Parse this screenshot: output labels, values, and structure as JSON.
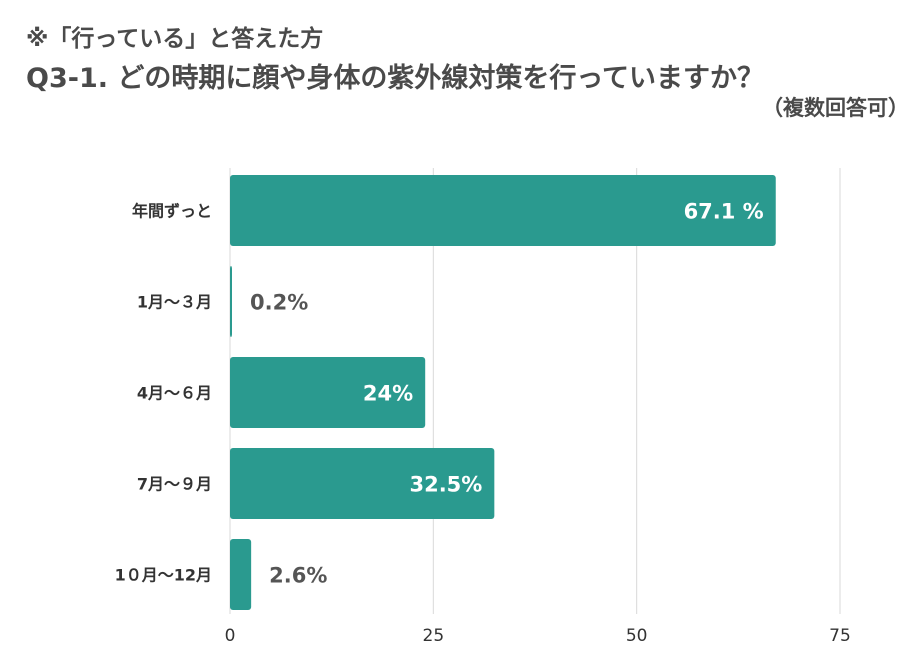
{
  "header": {
    "note": "※「行っている」と答えた方",
    "question": "Q3-1. どの時期に顔や身体の紫外線対策を行っていますか？",
    "subnote": "（複数回答可）"
  },
  "chart_data": {
    "type": "bar",
    "orientation": "horizontal",
    "categories": [
      "年間ずっと",
      "1月〜３月",
      "4月〜６月",
      "7月〜９月",
      "1０月〜12月"
    ],
    "values": [
      67.1,
      0.2,
      24,
      32.5,
      2.6
    ],
    "data_labels": [
      "67.1 %",
      "0.2%",
      "24%",
      "32.5%",
      "2.6%"
    ],
    "xlim": [
      0,
      75
    ],
    "xticks": [
      0,
      25,
      50,
      75
    ],
    "xtick_labels": [
      "0",
      "25",
      "50",
      "75"
    ],
    "grid": true,
    "bar_color": "#2a9a8f",
    "grid_color": "#d9d9d9"
  }
}
